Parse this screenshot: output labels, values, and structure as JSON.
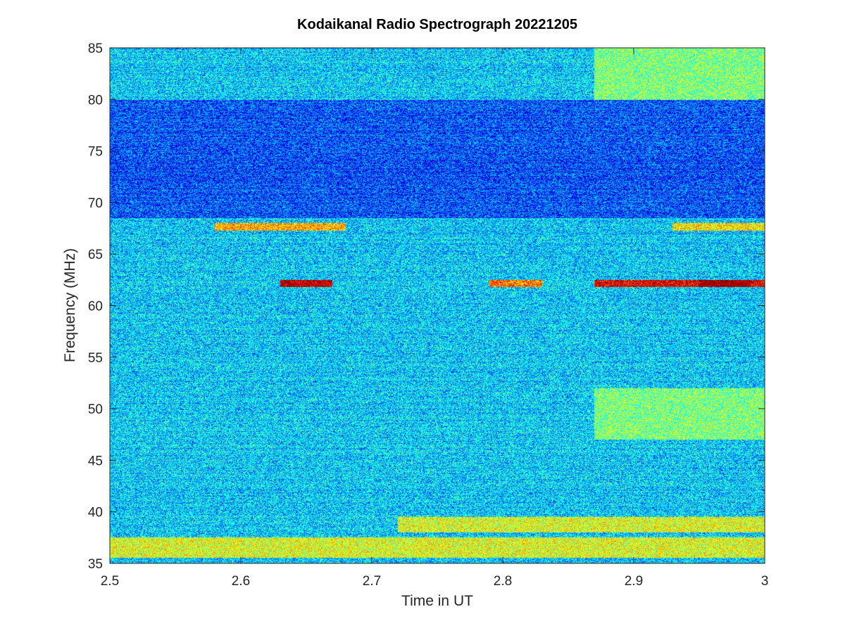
{
  "chart_data": {
    "type": "heatmap",
    "title": "Kodaikanal Radio Spectrograph  20221205",
    "xlabel": "Time in UT",
    "ylabel": "Frequency (MHz)",
    "xlim": [
      2.5,
      3.0
    ],
    "ylim": [
      35,
      85
    ],
    "xticks": [
      2.5,
      2.6,
      2.7,
      2.8,
      2.9,
      3.0
    ],
    "xtick_labels": [
      "2.5",
      "2.6",
      "2.7",
      "2.8",
      "2.9",
      "3"
    ],
    "yticks": [
      35,
      40,
      45,
      50,
      55,
      60,
      65,
      70,
      75,
      80,
      85
    ],
    "ytick_labels": [
      "35",
      "40",
      "45",
      "50",
      "55",
      "60",
      "65",
      "70",
      "75",
      "80",
      "85"
    ],
    "colormap": "jet",
    "grid": false,
    "intensity_bands": [
      {
        "freq_range": [
          35.5,
          37.5
        ],
        "time_range": [
          2.5,
          3.0
        ],
        "level": 0.6
      },
      {
        "freq_range": [
          38.0,
          39.5
        ],
        "time_range": [
          2.72,
          3.0
        ],
        "level": 0.6
      },
      {
        "freq_range": [
          67.3,
          68.0
        ],
        "time_range": [
          2.58,
          2.68
        ],
        "level": 0.7
      },
      {
        "freq_range": [
          67.3,
          68.0
        ],
        "time_range": [
          2.93,
          3.0
        ],
        "level": 0.65
      },
      {
        "freq_range": [
          61.8,
          62.5
        ],
        "time_range": [
          2.63,
          2.67
        ],
        "level": 0.95
      },
      {
        "freq_range": [
          61.8,
          62.5
        ],
        "time_range": [
          2.79,
          2.83
        ],
        "level": 0.75
      },
      {
        "freq_range": [
          61.8,
          62.5
        ],
        "time_range": [
          2.87,
          3.0
        ],
        "level": 0.9
      },
      {
        "freq_range": [
          61.8,
          62.5
        ],
        "time_range": [
          2.95,
          2.99
        ],
        "level": 1.0
      },
      {
        "freq_range": [
          80.0,
          85.0
        ],
        "time_range": [
          2.87,
          3.0
        ],
        "level": 0.5
      },
      {
        "freq_range": [
          47.0,
          52.0
        ],
        "time_range": [
          2.87,
          3.0
        ],
        "level": 0.5
      }
    ],
    "low_bands": [
      {
        "freq_range": [
          68.5,
          80.0
        ],
        "time_range": [
          2.5,
          3.0
        ],
        "level": 0.2
      }
    ]
  }
}
